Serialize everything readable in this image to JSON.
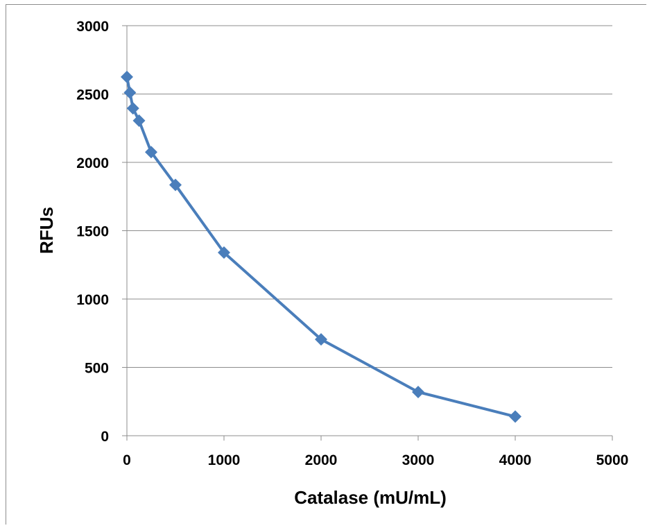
{
  "chart_data": {
    "type": "line",
    "title": "",
    "xlabel": "Catalase (mU/mL)",
    "ylabel": "RFUs",
    "xlim": [
      0,
      5000
    ],
    "ylim": [
      0,
      3000
    ],
    "x_ticks": [
      0,
      1000,
      2000,
      3000,
      4000,
      5000
    ],
    "y_ticks": [
      0,
      500,
      1000,
      1500,
      2000,
      2500,
      3000
    ],
    "x_tick_labels": [
      "0",
      "1000",
      "2000",
      "3000",
      "4000",
      "5000"
    ],
    "y_tick_labels": [
      "0",
      "500",
      "1000",
      "1500",
      "2000",
      "2500",
      "3000"
    ],
    "grid": "horizontal",
    "legend": "none",
    "marker": "diamond",
    "series": [
      {
        "color": "#4a7ebb",
        "x": [
          0,
          31.25,
          62.5,
          125,
          250,
          500,
          1000,
          2000,
          3000,
          4000
        ],
        "y": [
          2625,
          2510,
          2395,
          2305,
          2075,
          1835,
          1340,
          705,
          320,
          140
        ]
      }
    ]
  }
}
